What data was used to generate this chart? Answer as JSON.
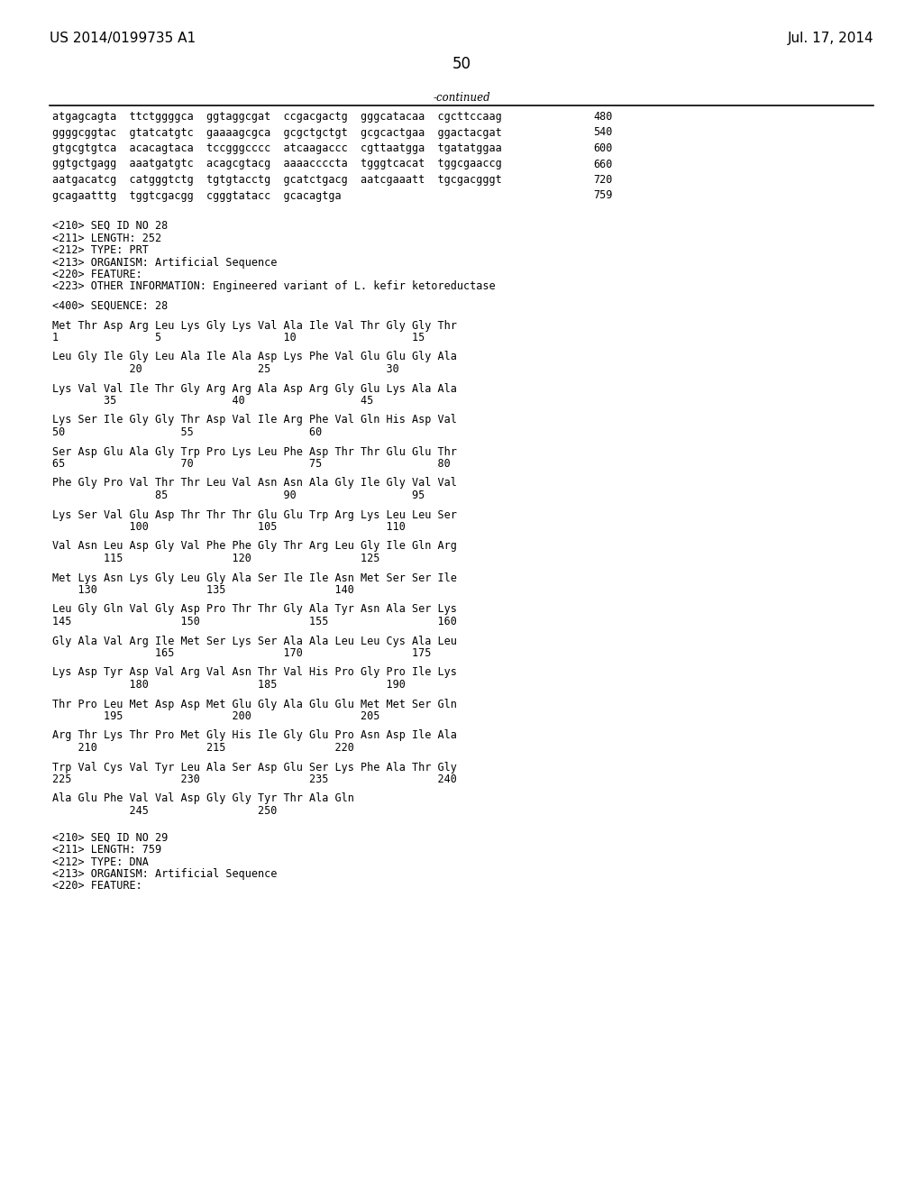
{
  "header_left": "US 2014/0199735 A1",
  "header_right": "Jul. 17, 2014",
  "page_number": "50",
  "continued_label": "-continued",
  "background_color": "#ffffff",
  "text_color": "#000000",
  "font_size_header": 11,
  "font_size_body": 8.5,
  "font_size_page": 12,
  "content_lines": [
    {
      "text": "atgagcagta  ttctggggca  ggtaggcgat  ccgacgactg  gggcatacaa  cgcttccaag",
      "number": "480",
      "type": "sequence"
    },
    {
      "text": "ggggcggtac  gtatcatgtc  gaaaagcgca  gcgctgctgt  gcgcactgaa  ggactacgat",
      "number": "540",
      "type": "sequence"
    },
    {
      "text": "gtgcgtgtca  acacagtaca  tccgggcccc  atcaagaccc  cgttaatgga  tgatatggaa",
      "number": "600",
      "type": "sequence"
    },
    {
      "text": "ggtgctgagg  aaatgatgtc  acagcgtacg  aaaaccccta  tgggtcacat  tggcgaaccg",
      "number": "660",
      "type": "sequence"
    },
    {
      "text": "aatgacatcg  catgggtctg  tgtgtacctg  gcatctgacg  aatcgaaatt  tgcgacgggt",
      "number": "720",
      "type": "sequence"
    },
    {
      "text": "gcagaatttg  tggtcgacgg  cgggtatacc  gcacagtga",
      "number": "759",
      "type": "sequence"
    },
    {
      "text": "",
      "number": "",
      "type": "blank"
    },
    {
      "text": "",
      "number": "",
      "type": "blank"
    },
    {
      "text": "<210> SEQ ID NO 28",
      "number": "",
      "type": "meta"
    },
    {
      "text": "<211> LENGTH: 252",
      "number": "",
      "type": "meta"
    },
    {
      "text": "<212> TYPE: PRT",
      "number": "",
      "type": "meta"
    },
    {
      "text": "<213> ORGANISM: Artificial Sequence",
      "number": "",
      "type": "meta"
    },
    {
      "text": "<220> FEATURE:",
      "number": "",
      "type": "meta"
    },
    {
      "text": "<223> OTHER INFORMATION: Engineered variant of L. kefir ketoreductase",
      "number": "",
      "type": "meta"
    },
    {
      "text": "",
      "number": "",
      "type": "blank"
    },
    {
      "text": "<400> SEQUENCE: 28",
      "number": "",
      "type": "meta"
    },
    {
      "text": "",
      "number": "",
      "type": "blank"
    },
    {
      "text": "Met Thr Asp Arg Leu Lys Gly Lys Val Ala Ile Val Thr Gly Gly Thr",
      "number": "",
      "type": "aa"
    },
    {
      "text": "1               5                   10                  15",
      "number": "",
      "type": "pos"
    },
    {
      "text": "",
      "number": "",
      "type": "blank"
    },
    {
      "text": "Leu Gly Ile Gly Leu Ala Ile Ala Asp Lys Phe Val Glu Glu Gly Ala",
      "number": "",
      "type": "aa"
    },
    {
      "text": "            20                  25                  30",
      "number": "",
      "type": "pos"
    },
    {
      "text": "",
      "number": "",
      "type": "blank"
    },
    {
      "text": "Lys Val Val Ile Thr Gly Arg Arg Ala Asp Arg Gly Glu Lys Ala Ala",
      "number": "",
      "type": "aa"
    },
    {
      "text": "        35                  40                  45",
      "number": "",
      "type": "pos"
    },
    {
      "text": "",
      "number": "",
      "type": "blank"
    },
    {
      "text": "Lys Ser Ile Gly Gly Thr Asp Val Ile Arg Phe Val Gln His Asp Val",
      "number": "",
      "type": "aa"
    },
    {
      "text": "50                  55                  60",
      "number": "",
      "type": "pos"
    },
    {
      "text": "",
      "number": "",
      "type": "blank"
    },
    {
      "text": "Ser Asp Glu Ala Gly Trp Pro Lys Leu Phe Asp Thr Thr Glu Glu Thr",
      "number": "",
      "type": "aa"
    },
    {
      "text": "65                  70                  75                  80",
      "number": "",
      "type": "pos"
    },
    {
      "text": "",
      "number": "",
      "type": "blank"
    },
    {
      "text": "Phe Gly Pro Val Thr Thr Leu Val Asn Asn Ala Gly Ile Gly Val Val",
      "number": "",
      "type": "aa"
    },
    {
      "text": "                85                  90                  95",
      "number": "",
      "type": "pos"
    },
    {
      "text": "",
      "number": "",
      "type": "blank"
    },
    {
      "text": "Lys Ser Val Glu Asp Thr Thr Thr Glu Glu Trp Arg Lys Leu Leu Ser",
      "number": "",
      "type": "aa"
    },
    {
      "text": "            100                 105                 110",
      "number": "",
      "type": "pos"
    },
    {
      "text": "",
      "number": "",
      "type": "blank"
    },
    {
      "text": "Val Asn Leu Asp Gly Val Phe Phe Gly Thr Arg Leu Gly Ile Gln Arg",
      "number": "",
      "type": "aa"
    },
    {
      "text": "        115                 120                 125",
      "number": "",
      "type": "pos"
    },
    {
      "text": "",
      "number": "",
      "type": "blank"
    },
    {
      "text": "Met Lys Asn Lys Gly Leu Gly Ala Ser Ile Ile Asn Met Ser Ser Ile",
      "number": "",
      "type": "aa"
    },
    {
      "text": "    130                 135                 140",
      "number": "",
      "type": "pos"
    },
    {
      "text": "",
      "number": "",
      "type": "blank"
    },
    {
      "text": "Leu Gly Gln Val Gly Asp Pro Thr Thr Gly Ala Tyr Asn Ala Ser Lys",
      "number": "",
      "type": "aa"
    },
    {
      "text": "145                 150                 155                 160",
      "number": "",
      "type": "pos"
    },
    {
      "text": "",
      "number": "",
      "type": "blank"
    },
    {
      "text": "Gly Ala Val Arg Ile Met Ser Lys Ser Ala Ala Leu Leu Cys Ala Leu",
      "number": "",
      "type": "aa"
    },
    {
      "text": "                165                 170                 175",
      "number": "",
      "type": "pos"
    },
    {
      "text": "",
      "number": "",
      "type": "blank"
    },
    {
      "text": "Lys Asp Tyr Asp Val Arg Val Asn Thr Val His Pro Gly Pro Ile Lys",
      "number": "",
      "type": "aa"
    },
    {
      "text": "            180                 185                 190",
      "number": "",
      "type": "pos"
    },
    {
      "text": "",
      "number": "",
      "type": "blank"
    },
    {
      "text": "Thr Pro Leu Met Asp Asp Met Glu Gly Ala Glu Glu Met Met Ser Gln",
      "number": "",
      "type": "aa"
    },
    {
      "text": "        195                 200                 205",
      "number": "",
      "type": "pos"
    },
    {
      "text": "",
      "number": "",
      "type": "blank"
    },
    {
      "text": "Arg Thr Lys Thr Pro Met Gly His Ile Gly Glu Pro Asn Asp Ile Ala",
      "number": "",
      "type": "aa"
    },
    {
      "text": "    210                 215                 220",
      "number": "",
      "type": "pos"
    },
    {
      "text": "",
      "number": "",
      "type": "blank"
    },
    {
      "text": "Trp Val Cys Val Tyr Leu Ala Ser Asp Glu Ser Lys Phe Ala Thr Gly",
      "number": "",
      "type": "aa"
    },
    {
      "text": "225                 230                 235                 240",
      "number": "",
      "type": "pos"
    },
    {
      "text": "",
      "number": "",
      "type": "blank"
    },
    {
      "text": "Ala Glu Phe Val Val Asp Gly Gly Tyr Thr Ala Gln",
      "number": "",
      "type": "aa"
    },
    {
      "text": "            245                 250",
      "number": "",
      "type": "pos"
    },
    {
      "text": "",
      "number": "",
      "type": "blank"
    },
    {
      "text": "",
      "number": "",
      "type": "blank"
    },
    {
      "text": "<210> SEQ ID NO 29",
      "number": "",
      "type": "meta"
    },
    {
      "text": "<211> LENGTH: 759",
      "number": "",
      "type": "meta"
    },
    {
      "text": "<212> TYPE: DNA",
      "number": "",
      "type": "meta"
    },
    {
      "text": "<213> ORGANISM: Artificial Sequence",
      "number": "",
      "type": "meta"
    },
    {
      "text": "<220> FEATURE:",
      "number": "",
      "type": "meta"
    }
  ]
}
